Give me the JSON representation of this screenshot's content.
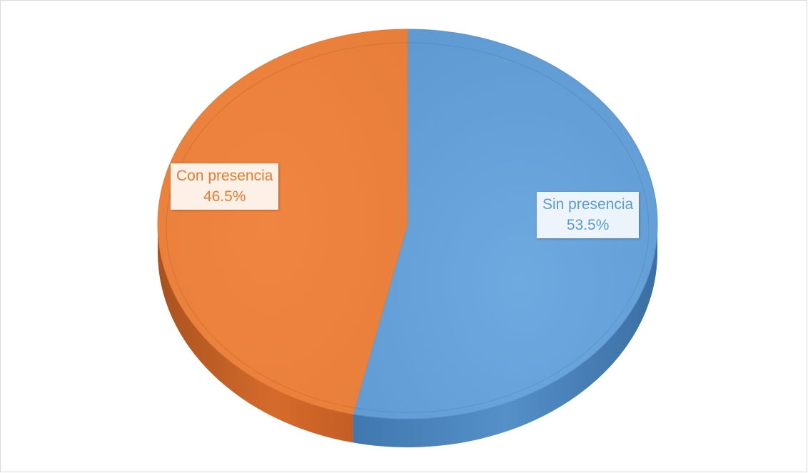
{
  "chart_data": {
    "type": "pie",
    "style": "3d",
    "slices": [
      {
        "name": "Sin presencia",
        "value": 53.5,
        "label": "53.5%",
        "color": "#5b9bd5",
        "side_color": "#4a82b8"
      },
      {
        "name": "Con presencia",
        "value": 46.5,
        "label": "46.5%",
        "color": "#ed7d31",
        "side_color": "#c8652a"
      }
    ],
    "start_angle_deg": 0,
    "direction": "clockwise",
    "title": "",
    "legend": "none"
  }
}
